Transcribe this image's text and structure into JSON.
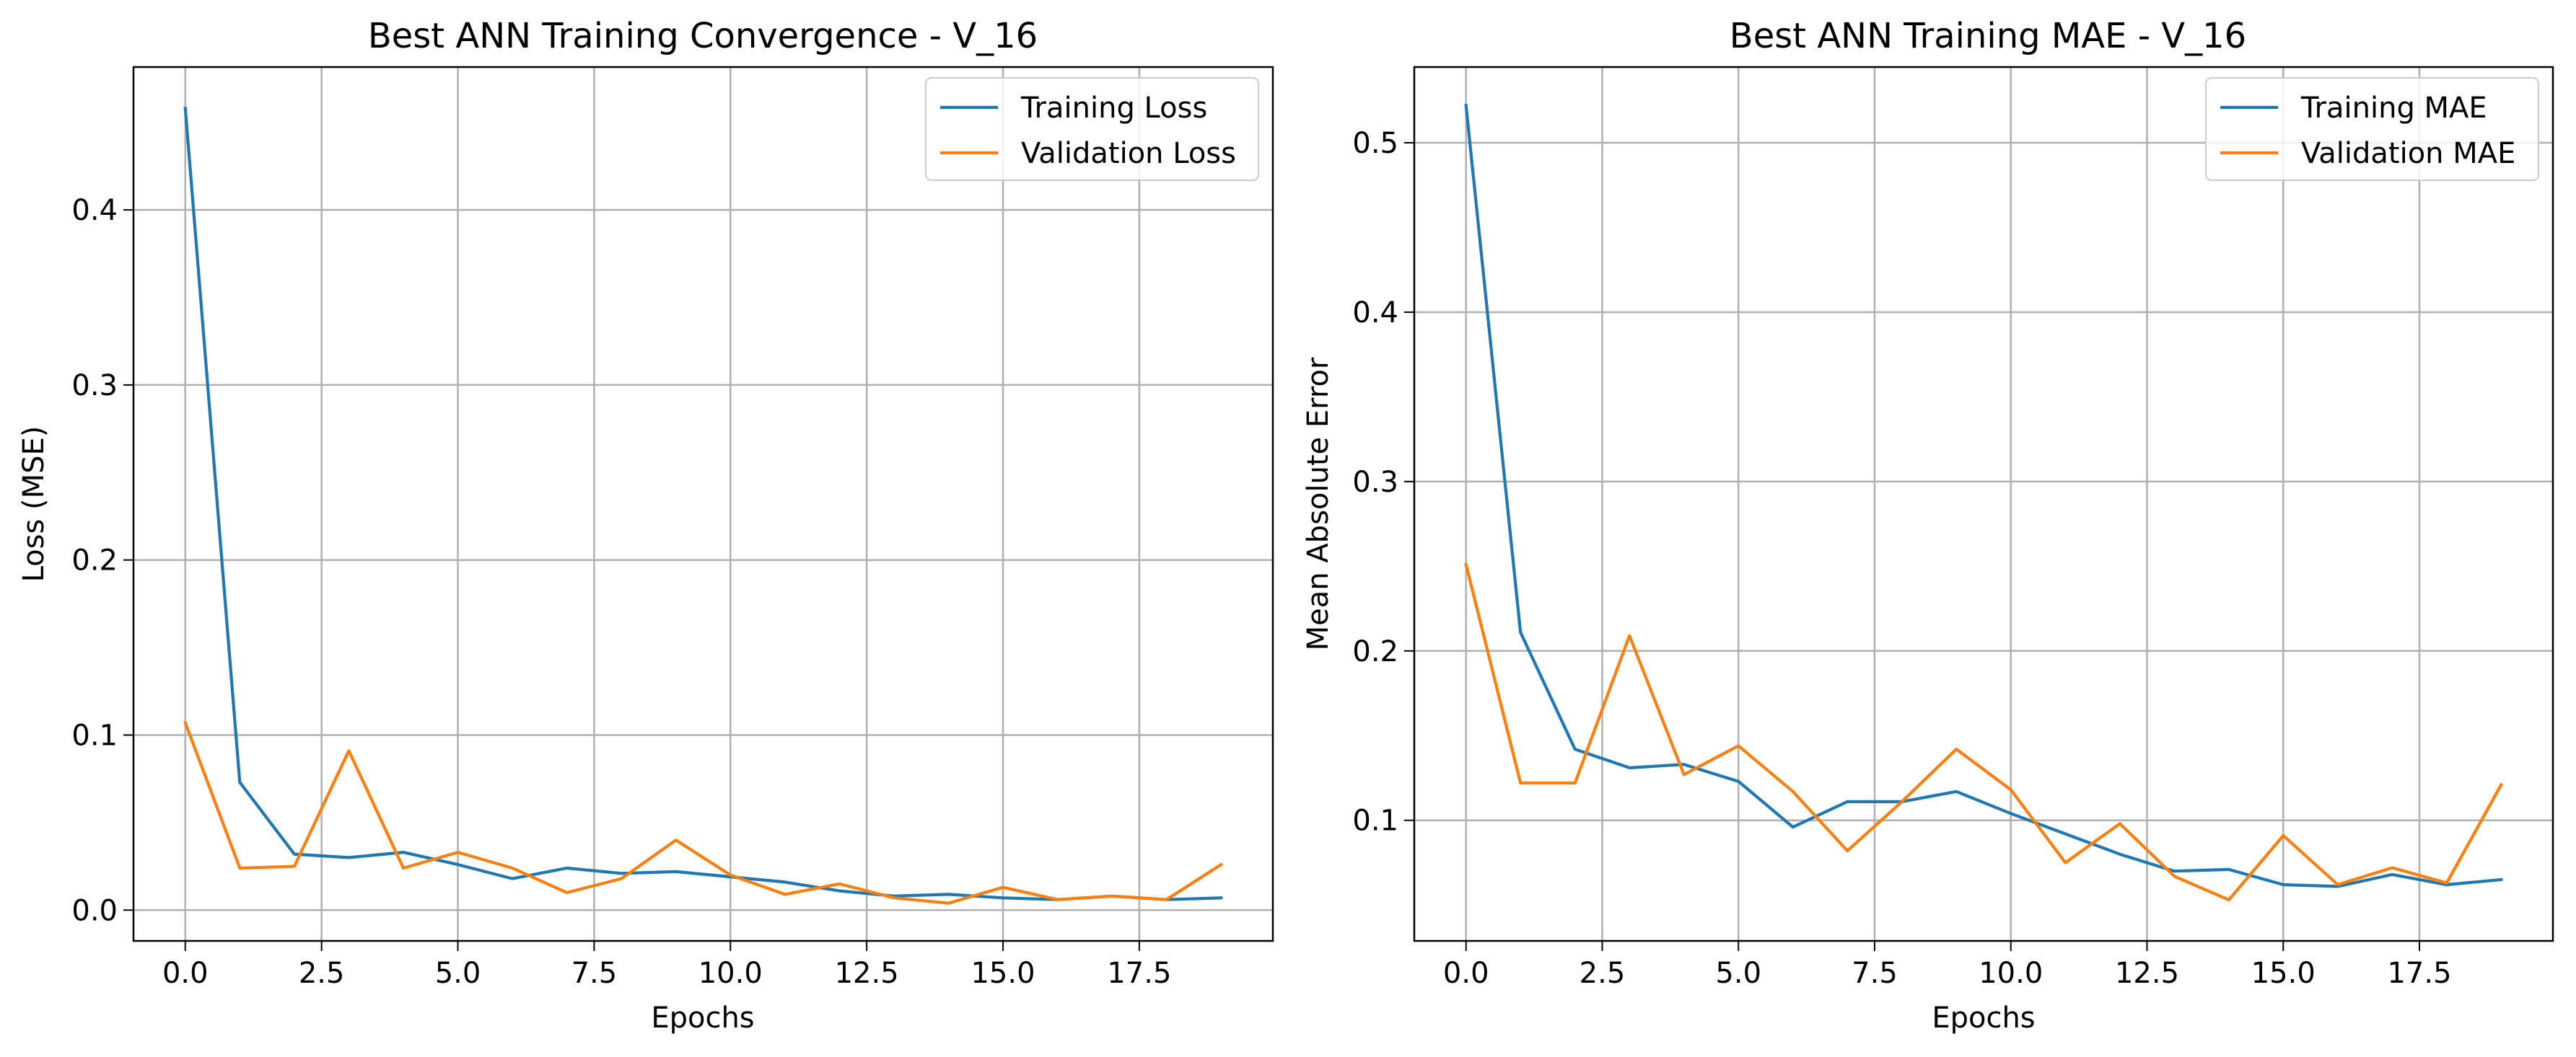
{
  "chart_data": [
    {
      "type": "line",
      "title": "Best ANN Training Convergence - V_16",
      "xlabel": "Epochs",
      "ylabel": "Loss (MSE)",
      "x": [
        0,
        1,
        2,
        3,
        4,
        5,
        6,
        7,
        8,
        9,
        10,
        11,
        12,
        13,
        14,
        15,
        16,
        17,
        18,
        19
      ],
      "xlim": [
        -0.95,
        19.95
      ],
      "ylim": [
        -0.0176,
        0.4816
      ],
      "xticks": [
        0.0,
        2.5,
        5.0,
        7.5,
        10.0,
        12.5,
        15.0,
        17.5
      ],
      "xtick_labels": [
        "0.0",
        "2.5",
        "5.0",
        "7.5",
        "10.0",
        "12.5",
        "15.0",
        "17.5"
      ],
      "yticks": [
        0.0,
        0.1,
        0.2,
        0.3,
        0.4
      ],
      "ytick_labels": [
        "0.0",
        "0.1",
        "0.2",
        "0.3",
        "0.4"
      ],
      "grid": true,
      "legend_position": "top-right",
      "series": [
        {
          "name": "Training Loss",
          "color": "#1f77b4",
          "values": [
            0.458,
            0.073,
            0.032,
            0.03,
            0.033,
            0.026,
            0.018,
            0.024,
            0.021,
            0.022,
            0.019,
            0.016,
            0.011,
            0.008,
            0.009,
            0.007,
            0.006,
            0.008,
            0.006,
            0.007
          ]
        },
        {
          "name": "Validation Loss",
          "color": "#ff7f0e",
          "values": [
            0.107,
            0.024,
            0.025,
            0.091,
            0.024,
            0.033,
            0.024,
            0.01,
            0.018,
            0.04,
            0.02,
            0.009,
            0.015,
            0.007,
            0.004,
            0.013,
            0.006,
            0.008,
            0.006,
            0.026
          ]
        }
      ]
    },
    {
      "type": "line",
      "title": "Best ANN Training MAE - V_16",
      "xlabel": "Epochs",
      "ylabel": "Mean Absolute Error",
      "x": [
        0,
        1,
        2,
        3,
        4,
        5,
        6,
        7,
        8,
        9,
        10,
        11,
        12,
        13,
        14,
        15,
        16,
        17,
        18,
        19
      ],
      "xlim": [
        -0.95,
        19.95
      ],
      "ylim": [
        0.0288,
        0.5447
      ],
      "xticks": [
        0.0,
        2.5,
        5.0,
        7.5,
        10.0,
        12.5,
        15.0,
        17.5
      ],
      "xtick_labels": [
        "0.0",
        "2.5",
        "5.0",
        "7.5",
        "10.0",
        "12.5",
        "15.0",
        "17.5"
      ],
      "yticks": [
        0.1,
        0.2,
        0.3,
        0.4,
        0.5
      ],
      "ytick_labels": [
        "0.1",
        "0.2",
        "0.3",
        "0.4",
        "0.5"
      ],
      "grid": true,
      "legend_position": "top-right",
      "series": [
        {
          "name": "Training MAE",
          "color": "#1f77b4",
          "values": [
            0.522,
            0.211,
            0.142,
            0.131,
            0.133,
            0.123,
            0.096,
            0.111,
            0.111,
            0.117,
            0.104,
            0.092,
            0.08,
            0.07,
            0.071,
            0.062,
            0.061,
            0.068,
            0.062,
            0.065
          ]
        },
        {
          "name": "Validation MAE",
          "color": "#ff7f0e",
          "values": [
            0.251,
            0.122,
            0.122,
            0.209,
            0.127,
            0.144,
            0.117,
            0.082,
            0.111,
            0.142,
            0.118,
            0.075,
            0.098,
            0.067,
            0.053,
            0.091,
            0.062,
            0.072,
            0.063,
            0.121
          ]
        }
      ]
    }
  ]
}
